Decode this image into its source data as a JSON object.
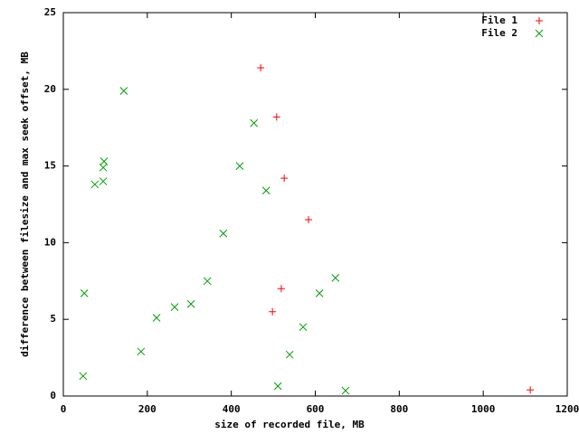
{
  "chart_data": {
    "type": "scatter",
    "xlabel": "size of recorded file, MB",
    "ylabel": "difference between filesize and max seek offset, MB",
    "xlim": [
      0,
      1200
    ],
    "xticks": [
      0,
      200,
      400,
      600,
      800,
      1000,
      1200
    ],
    "ylim": [
      0,
      25
    ],
    "yticks": [
      0,
      5,
      10,
      15,
      20,
      25
    ],
    "grid": false,
    "legend": "top-right",
    "series": [
      {
        "name": "File 1",
        "color": "#ff0000",
        "marker": "plus",
        "x": [
          470,
          508,
          526,
          584,
          519,
          498,
          1112
        ],
        "values": [
          21.4,
          18.2,
          14.2,
          11.5,
          7.0,
          5.5,
          0.4
        ]
      },
      {
        "name": "File 2",
        "color": "#00a000",
        "marker": "cross",
        "x": [
          144,
          97,
          95,
          95,
          75,
          454,
          420,
          483,
          381,
          343,
          50,
          648,
          610,
          571,
          222,
          265,
          304,
          185,
          539,
          47,
          511,
          672
        ],
        "values": [
          19.9,
          15.3,
          14.9,
          14.0,
          13.8,
          17.8,
          15.0,
          13.4,
          10.6,
          7.5,
          6.7,
          7.7,
          6.7,
          4.5,
          5.1,
          5.8,
          6.0,
          2.9,
          2.7,
          1.3,
          0.65,
          0.35
        ]
      }
    ]
  }
}
